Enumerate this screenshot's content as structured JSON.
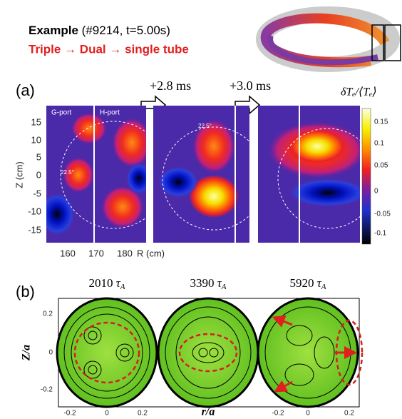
{
  "header": {
    "title": "Example",
    "shot": "(#9214, t=5.00s)",
    "subtitle": "Triple → Dual → single tube"
  },
  "panel_a": {
    "label": "(a)",
    "steps": [
      "+2.8 ms",
      "+3.0 ms"
    ],
    "colorbar_title": "δTₑ/⟨Tₑ⟩",
    "colorbar_ticks": [
      0.15,
      0.1,
      0.05,
      0,
      -0.05,
      -0.1
    ],
    "ports": [
      "G-port",
      "H-port"
    ],
    "angle_labels": [
      "22.5°",
      "22.5°"
    ],
    "y_label": "Z (cm)",
    "y_ticks": [
      15,
      10,
      5,
      0,
      -5,
      -10,
      -15
    ],
    "x_label": "R (cm)",
    "x_ticks": [
      160,
      170,
      180
    ]
  },
  "panel_b": {
    "label": "(b)",
    "times": [
      2010,
      3390,
      5920
    ],
    "tau": "τ",
    "tau_sub": "A",
    "y_label": "Z/a",
    "x_label": "r/a",
    "y_ticks": [
      0.2,
      0,
      -0.2
    ],
    "x_ticks": [
      -0.2,
      0,
      0.2
    ]
  }
}
